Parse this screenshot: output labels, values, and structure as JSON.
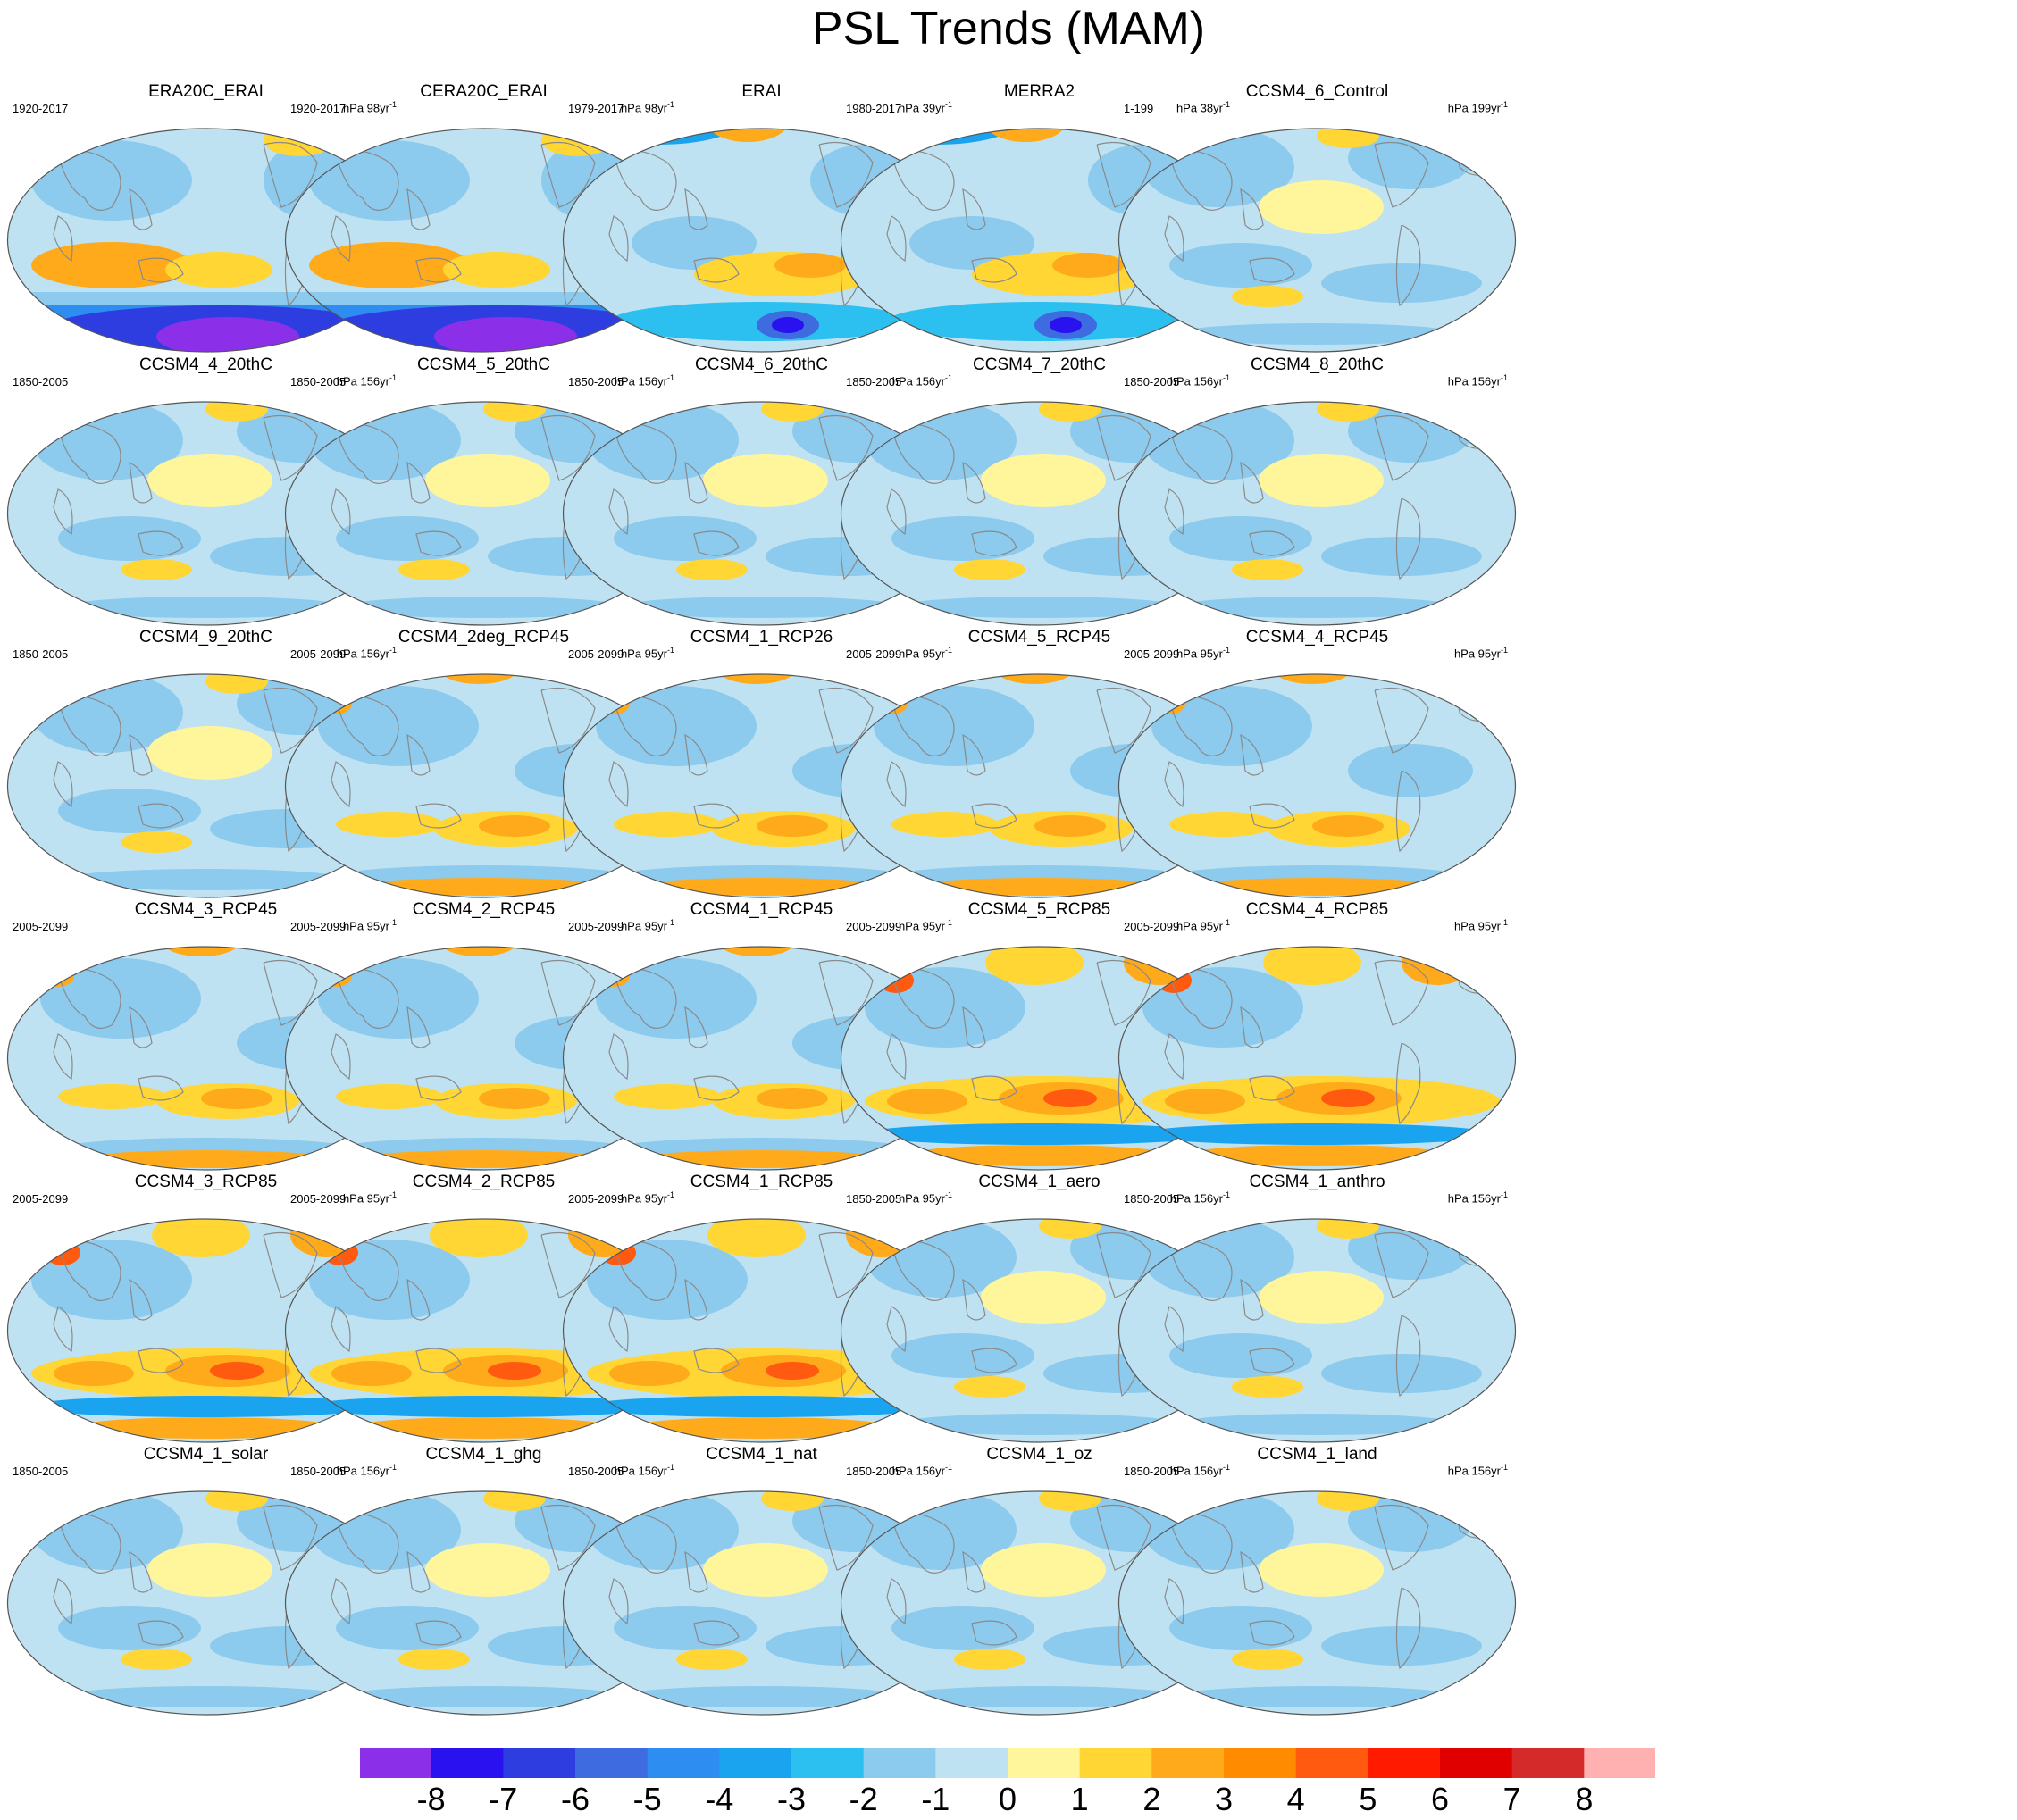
{
  "title": "PSL Trends (MAM)",
  "panels": [
    {
      "name": "ERA20C_ERAI",
      "years": "1920-2017",
      "units": "hPa 98yr",
      "units_sup": "-1",
      "pattern": "strong_south_neg"
    },
    {
      "name": "CERA20C_ERAI",
      "years": "1920-2017",
      "units": "hPa 98yr",
      "units_sup": "-1",
      "pattern": "strong_south_neg"
    },
    {
      "name": "ERAI",
      "years": "1979-2017",
      "units": "hPa 39yr",
      "units_sup": "-1",
      "pattern": "reanalysis_mixed"
    },
    {
      "name": "MERRA2",
      "years": "1980-2017",
      "units": "hPa 38yr",
      "units_sup": "-1",
      "pattern": "reanalysis_mixed"
    },
    {
      "name": "CCSM4_6_Control",
      "years": "1-199",
      "units": "hPa 199yr",
      "units_sup": "-1",
      "pattern": "weak"
    },
    {
      "name": "CCSM4_4_20thC",
      "years": "1850-2005",
      "units": "hPa 156yr",
      "units_sup": "-1",
      "pattern": "weak"
    },
    {
      "name": "CCSM4_5_20thC",
      "years": "1850-2005",
      "units": "hPa 156yr",
      "units_sup": "-1",
      "pattern": "weak"
    },
    {
      "name": "CCSM4_6_20thC",
      "years": "1850-2005",
      "units": "hPa 156yr",
      "units_sup": "-1",
      "pattern": "weak"
    },
    {
      "name": "CCSM4_7_20thC",
      "years": "1850-2005",
      "units": "hPa 156yr",
      "units_sup": "-1",
      "pattern": "weak"
    },
    {
      "name": "CCSM4_8_20thC",
      "years": "1850-2005",
      "units": "hPa 156yr",
      "units_sup": "-1",
      "pattern": "weak"
    },
    {
      "name": "CCSM4_9_20thC",
      "years": "1850-2005",
      "units": "hPa 156yr",
      "units_sup": "-1",
      "pattern": "weak"
    },
    {
      "name": "CCSM4_2deg_RCP45",
      "years": "2005-2099",
      "units": "hPa 95yr",
      "units_sup": "-1",
      "pattern": "rcp45"
    },
    {
      "name": "CCSM4_1_RCP26",
      "years": "2005-2099",
      "units": "hPa 95yr",
      "units_sup": "-1",
      "pattern": "rcp45"
    },
    {
      "name": "CCSM4_5_RCP45",
      "years": "2005-2099",
      "units": "hPa 95yr",
      "units_sup": "-1",
      "pattern": "rcp45"
    },
    {
      "name": "CCSM4_4_RCP45",
      "years": "2005-2099",
      "units": "hPa 95yr",
      "units_sup": "-1",
      "pattern": "rcp45"
    },
    {
      "name": "CCSM4_3_RCP45",
      "years": "2005-2099",
      "units": "hPa 95yr",
      "units_sup": "-1",
      "pattern": "rcp45"
    },
    {
      "name": "CCSM4_2_RCP45",
      "years": "2005-2099",
      "units": "hPa 95yr",
      "units_sup": "-1",
      "pattern": "rcp45"
    },
    {
      "name": "CCSM4_1_RCP45",
      "years": "2005-2099",
      "units": "hPa 95yr",
      "units_sup": "-1",
      "pattern": "rcp45"
    },
    {
      "name": "CCSM4_5_RCP85",
      "years": "2005-2099",
      "units": "hPa 95yr",
      "units_sup": "-1",
      "pattern": "rcp85"
    },
    {
      "name": "CCSM4_4_RCP85",
      "years": "2005-2099",
      "units": "hPa 95yr",
      "units_sup": "-1",
      "pattern": "rcp85"
    },
    {
      "name": "CCSM4_3_RCP85",
      "years": "2005-2099",
      "units": "hPa 95yr",
      "units_sup": "-1",
      "pattern": "rcp85"
    },
    {
      "name": "CCSM4_2_RCP85",
      "years": "2005-2099",
      "units": "hPa 95yr",
      "units_sup": "-1",
      "pattern": "rcp85"
    },
    {
      "name": "CCSM4_1_RCP85",
      "years": "2005-2099",
      "units": "hPa 95yr",
      "units_sup": "-1",
      "pattern": "rcp85"
    },
    {
      "name": "CCSM4_1_aero",
      "years": "1850-2005",
      "units": "hPa 156yr",
      "units_sup": "-1",
      "pattern": "weak"
    },
    {
      "name": "CCSM4_1_anthro",
      "years": "1850-2005",
      "units": "hPa 156yr",
      "units_sup": "-1",
      "pattern": "weak"
    },
    {
      "name": "CCSM4_1_solar",
      "years": "1850-2005",
      "units": "hPa 156yr",
      "units_sup": "-1",
      "pattern": "weak"
    },
    {
      "name": "CCSM4_1_ghg",
      "years": "1850-2005",
      "units": "hPa 156yr",
      "units_sup": "-1",
      "pattern": "weak"
    },
    {
      "name": "CCSM4_1_nat",
      "years": "1850-2005",
      "units": "hPa 156yr",
      "units_sup": "-1",
      "pattern": "weak"
    },
    {
      "name": "CCSM4_1_oz",
      "years": "1850-2005",
      "units": "hPa 156yr",
      "units_sup": "-1",
      "pattern": "weak"
    },
    {
      "name": "CCSM4_1_land",
      "years": "1850-2005",
      "units": "hPa 156yr",
      "units_sup": "-1",
      "pattern": "weak"
    }
  ],
  "colorbar": {
    "labels": [
      "-8",
      "-7",
      "-6",
      "-5",
      "-4",
      "-3",
      "-2",
      "-1",
      "0",
      "1",
      "2",
      "3",
      "4",
      "5",
      "6",
      "7",
      "8"
    ],
    "colors": [
      "#8c2fe8",
      "#2a12f0",
      "#2d3de0",
      "#3f6be0",
      "#2e8df0",
      "#1aa4f0",
      "#2cc0f0",
      "#8ccaee",
      "#bfe2f2",
      "#fff59a",
      "#ffd633",
      "#ffaa1a",
      "#ff8c00",
      "#ff5a10",
      "#ff1a00",
      "#e00000",
      "#d42a2a",
      "#ffb0b0"
    ]
  }
}
